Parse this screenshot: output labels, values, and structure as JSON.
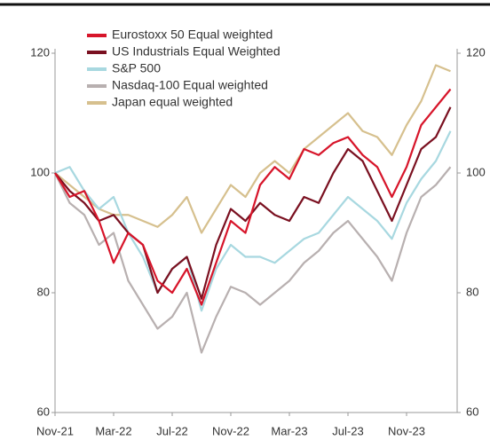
{
  "chart_data": {
    "type": "line",
    "categories": [
      "Nov-21",
      null,
      null,
      null,
      "Mar-22",
      null,
      null,
      null,
      "Jul-22",
      null,
      null,
      null,
      "Nov-22",
      null,
      null,
      null,
      "Mar-23",
      null,
      null,
      null,
      "Jul-23",
      null,
      null,
      null,
      "Nov-23",
      null,
      null,
      null
    ],
    "series": [
      {
        "name": "Eurostoxx 50 Equal weighted",
        "color": "#d7152a",
        "values": [
          100,
          96,
          97,
          92,
          85,
          90,
          88,
          82,
          80,
          84,
          78,
          85,
          92,
          90,
          98,
          101,
          99,
          104,
          103,
          105,
          106,
          103,
          101,
          96,
          101,
          108,
          111,
          114
        ]
      },
      {
        "name": "US Industrials Equal Weighted",
        "color": "#7a1020",
        "values": [
          100,
          97,
          95,
          92,
          93,
          90,
          88,
          80,
          84,
          86,
          79,
          88,
          94,
          92,
          95,
          93,
          92,
          96,
          95,
          100,
          104,
          102,
          97,
          92,
          98,
          104,
          106,
          111
        ]
      },
      {
        "name": "S&P 500",
        "color": "#a8d8e0",
        "values": [
          100,
          101,
          97,
          94,
          96,
          90,
          86,
          80,
          84,
          86,
          77,
          84,
          88,
          86,
          86,
          85,
          87,
          89,
          90,
          93,
          96,
          94,
          92,
          89,
          95,
          99,
          102,
          107
        ]
      },
      {
        "name": "Nasdaq-100 Equal weighted",
        "color": "#b8b0b0",
        "values": [
          100,
          95,
          93,
          88,
          90,
          82,
          78,
          74,
          76,
          80,
          70,
          76,
          81,
          80,
          78,
          80,
          82,
          85,
          87,
          90,
          92,
          89,
          86,
          82,
          90,
          96,
          98,
          101
        ]
      },
      {
        "name": "Japan equal weighted",
        "color": "#d6c08e",
        "values": [
          100,
          98,
          96,
          94,
          93,
          93,
          92,
          91,
          93,
          96,
          90,
          94,
          98,
          96,
          100,
          102,
          100,
          104,
          106,
          108,
          110,
          107,
          106,
          103,
          108,
          112,
          118,
          117
        ]
      }
    ],
    "ylim": [
      60,
      120
    ],
    "yticks": [
      60,
      80,
      100,
      120
    ],
    "y2lim": [
      60,
      120
    ],
    "y2ticks": [
      60,
      80,
      100,
      120
    ],
    "legend": "top-left"
  }
}
